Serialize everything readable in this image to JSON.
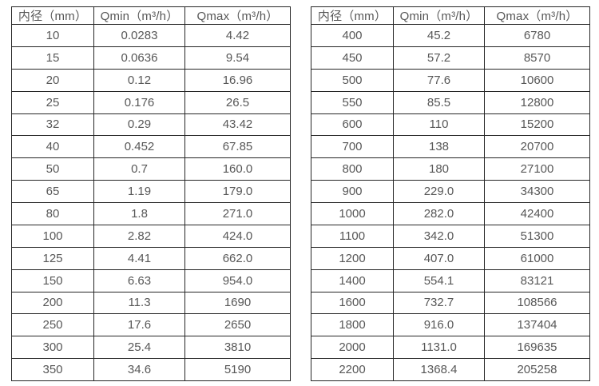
{
  "page": {
    "background": "#ffffff",
    "border_color": "#262626",
    "text_color": "#575757"
  },
  "tables": [
    {
      "name": "flow-table-small-diameters",
      "headers": [
        "内径（mm）",
        "Qmin（m³/h）",
        "Qmax（m³/h）"
      ],
      "rows": [
        [
          "10",
          "0.0283",
          "4.42"
        ],
        [
          "15",
          "0.0636",
          "9.54"
        ],
        [
          "20",
          "0.12",
          "16.96"
        ],
        [
          "25",
          "0.176",
          "26.5"
        ],
        [
          "32",
          "0.29",
          "43.42"
        ],
        [
          "40",
          "0.452",
          "67.85"
        ],
        [
          "50",
          "0.7",
          "160.0"
        ],
        [
          "65",
          "1.19",
          "179.0"
        ],
        [
          "80",
          "1.8",
          "271.0"
        ],
        [
          "100",
          "2.82",
          "424.0"
        ],
        [
          "125",
          "4.41",
          "662.0"
        ],
        [
          "150",
          "6.63",
          "954.0"
        ],
        [
          "200",
          "11.3",
          "1690"
        ],
        [
          "250",
          "17.6",
          "2650"
        ],
        [
          "300",
          "25.4",
          "3810"
        ],
        [
          "350",
          "34.6",
          "5190"
        ]
      ]
    },
    {
      "name": "flow-table-large-diameters",
      "headers": [
        "内径（mm）",
        "Qmin（m³/h）",
        "Qmax（m³/h）"
      ],
      "rows": [
        [
          "400",
          "45.2",
          "6780"
        ],
        [
          "450",
          "57.2",
          "8570"
        ],
        [
          "500",
          "77.6",
          "10600"
        ],
        [
          "550",
          "85.5",
          "12800"
        ],
        [
          "600",
          "110",
          "15200"
        ],
        [
          "700",
          "138",
          "20700"
        ],
        [
          "800",
          "180",
          "27100"
        ],
        [
          "900",
          "229.0",
          "34300"
        ],
        [
          "1000",
          "282.0",
          "42400"
        ],
        [
          "1100",
          "342.0",
          "51300"
        ],
        [
          "1200",
          "407.0",
          "61000"
        ],
        [
          "1400",
          "554.1",
          "83121"
        ],
        [
          "1600",
          "732.7",
          "108566"
        ],
        [
          "1800",
          "916.0",
          "137404"
        ],
        [
          "2000",
          "1131.0",
          "169635"
        ],
        [
          "2200",
          "1368.4",
          "205258"
        ]
      ]
    }
  ]
}
